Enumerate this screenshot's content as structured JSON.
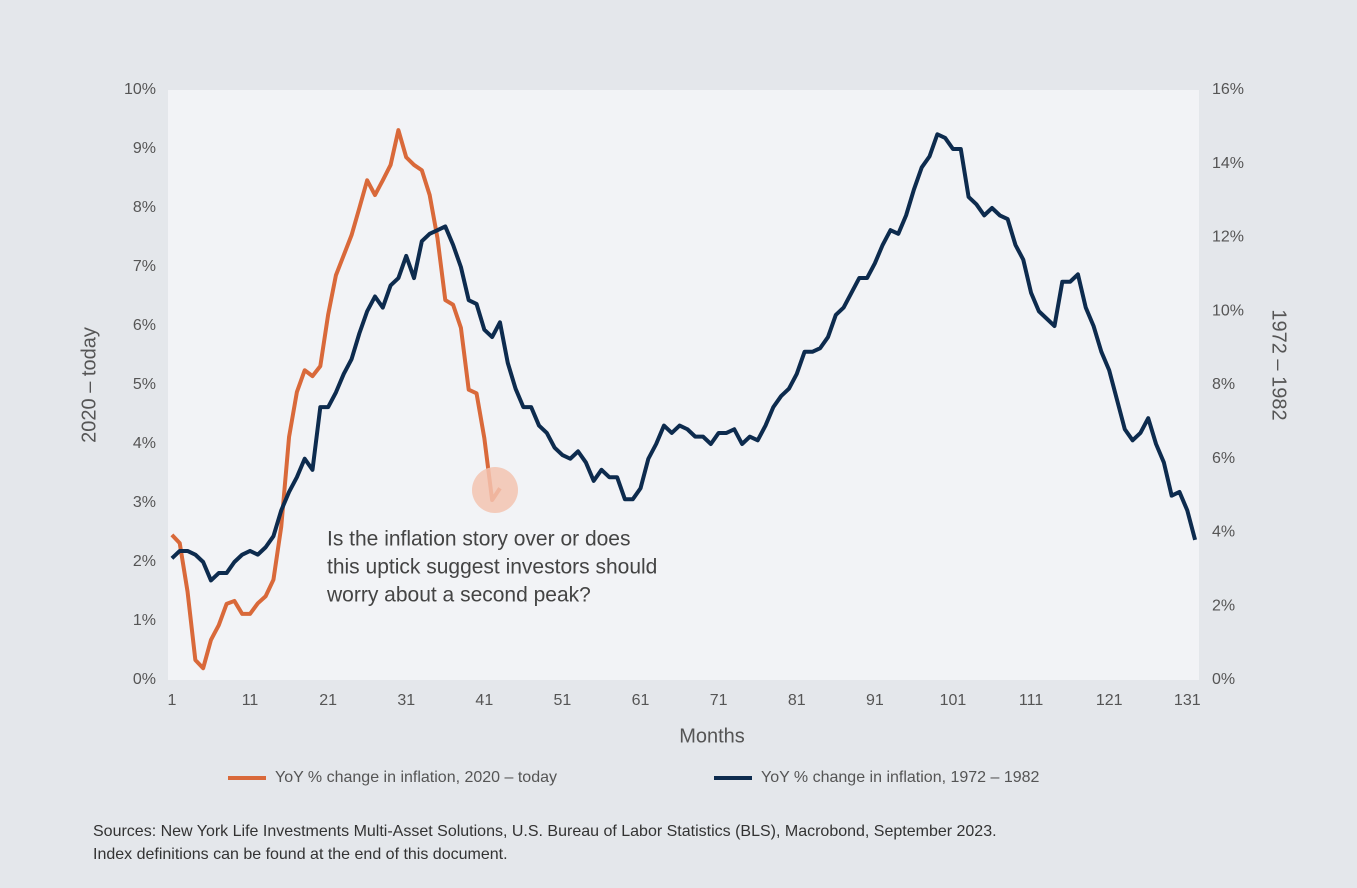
{
  "chart_data": {
    "type": "line",
    "x_label": "Months",
    "y_label": "2020 – today",
    "y2_label": "1972 – 1982",
    "annotation_lines": [
      "Is the inflation story over or does",
      "this uptick suggest investors should",
      "worry about a second peak?"
    ],
    "source_lines": [
      "Sources: New York Life Investments Multi-Asset Solutions, U.S. Bureau of Labor Statistics (BLS), Macrobond, September 2023.",
      "Index definitions can be found at the end of this document."
    ],
    "grid": false,
    "xlim": [
      0.5,
      132.5
    ],
    "xticks": [
      1,
      11,
      21,
      31,
      41,
      51,
      61,
      71,
      81,
      91,
      101,
      111,
      121,
      131
    ],
    "ylim": [
      0,
      10
    ],
    "yticks": [
      {
        "value": 0,
        "label": "0%"
      },
      {
        "value": 1,
        "label": "1%"
      },
      {
        "value": 2,
        "label": "2%"
      },
      {
        "value": 3,
        "label": "3%"
      },
      {
        "value": 4,
        "label": "4%"
      },
      {
        "value": 5,
        "label": "5%"
      },
      {
        "value": 6,
        "label": "6%"
      },
      {
        "value": 7,
        "label": "7%"
      },
      {
        "value": 8,
        "label": "8%"
      },
      {
        "value": 9,
        "label": "9%"
      },
      {
        "value": 10,
        "label": "10%"
      }
    ],
    "y2lim": [
      0,
      16
    ],
    "y2ticks": [
      {
        "value": 0,
        "label": "0%"
      },
      {
        "value": 2,
        "label": "2%"
      },
      {
        "value": 4,
        "label": "4%"
      },
      {
        "value": 6,
        "label": "6%"
      },
      {
        "value": 8,
        "label": "8%"
      },
      {
        "value": 10,
        "label": "10%"
      },
      {
        "value": 12,
        "label": "12%"
      },
      {
        "value": 14,
        "label": "14%"
      },
      {
        "value": 16,
        "label": "16%"
      }
    ],
    "x": [
      1,
      2,
      3,
      4,
      5,
      6,
      7,
      8,
      9,
      10,
      11,
      12,
      13,
      14,
      15,
      16,
      17,
      18,
      19,
      20,
      21,
      22,
      23,
      24,
      25,
      26,
      27,
      28,
      29,
      30,
      31,
      32,
      33,
      34,
      35,
      36,
      37,
      38,
      39,
      40,
      41,
      42,
      43,
      44,
      45,
      46,
      47,
      48,
      49,
      50,
      51,
      52,
      53,
      54,
      55,
      56,
      57,
      58,
      59,
      60,
      61,
      62,
      63,
      64,
      65,
      66,
      67,
      68,
      69,
      70,
      71,
      72,
      73,
      74,
      75,
      76,
      77,
      78,
      79,
      80,
      81,
      82,
      83,
      84,
      85,
      86,
      87,
      88,
      89,
      90,
      91,
      92,
      93,
      94,
      95,
      96,
      97,
      98,
      99,
      100,
      101,
      102,
      103,
      104,
      105,
      106,
      107,
      108,
      109,
      110,
      111,
      112,
      113,
      114,
      115,
      116,
      117,
      118,
      119,
      120,
      121,
      122,
      123,
      124,
      125,
      126,
      127,
      128,
      129,
      130,
      131,
      132
    ],
    "series": [
      {
        "name": "YoY % change in inflation, 2020 – today",
        "color": "#d9693a",
        "values": [
          2.46,
          2.32,
          1.5,
          0.34,
          0.2,
          0.68,
          0.93,
          1.29,
          1.34,
          1.12,
          1.12,
          1.3,
          1.42,
          1.7,
          2.6,
          4.12,
          4.88,
          5.25,
          5.15,
          5.32,
          6.19,
          6.86,
          7.2,
          7.54,
          8.0,
          8.47,
          8.22,
          8.47,
          8.73,
          9.32,
          8.86,
          8.73,
          8.64,
          8.22,
          7.49,
          6.44,
          6.36,
          5.97,
          4.92,
          4.86,
          4.1,
          3.05,
          3.25,
          null,
          null,
          null,
          null,
          null,
          null,
          null,
          null,
          null,
          null,
          null,
          null,
          null,
          null,
          null,
          null,
          null,
          null,
          null,
          null,
          null,
          null,
          null,
          null,
          null,
          null,
          null,
          null,
          null,
          null,
          null,
          null,
          null,
          null,
          null,
          null,
          null,
          null,
          null,
          null,
          null,
          null,
          null,
          null,
          null,
          null,
          null,
          null,
          null,
          null,
          null,
          null,
          null,
          null,
          null,
          null,
          null,
          null,
          null,
          null,
          null,
          null,
          null,
          null,
          null,
          null,
          null,
          null,
          null,
          null,
          null,
          null,
          null,
          null,
          null,
          null,
          null,
          null,
          null,
          null,
          null,
          null,
          null,
          null,
          null,
          null,
          null,
          null,
          null
        ]
      },
      {
        "name": "YoY % change in inflation, 1972 – 1982",
        "color": "#0d2b4e",
        "axis": "y2",
        "values": [
          3.3,
          3.5,
          3.5,
          3.4,
          3.2,
          2.7,
          2.9,
          2.9,
          3.2,
          3.4,
          3.5,
          3.4,
          3.6,
          3.9,
          4.6,
          5.1,
          5.5,
          6.0,
          5.7,
          7.4,
          7.4,
          7.8,
          8.3,
          8.7,
          9.4,
          10.0,
          10.4,
          10.1,
          10.7,
          10.9,
          11.5,
          10.9,
          11.9,
          12.1,
          12.2,
          12.3,
          11.8,
          11.2,
          10.3,
          10.2,
          9.5,
          9.3,
          9.7,
          8.6,
          7.9,
          7.4,
          7.4,
          6.9,
          6.7,
          6.3,
          6.1,
          6.0,
          6.2,
          5.9,
          5.4,
          5.7,
          5.5,
          5.5,
          4.9,
          4.9,
          5.2,
          6.0,
          6.4,
          6.9,
          6.7,
          6.9,
          6.8,
          6.6,
          6.6,
          6.4,
          6.7,
          6.7,
          6.8,
          6.4,
          6.6,
          6.5,
          6.9,
          7.4,
          7.7,
          7.9,
          8.3,
          8.9,
          8.9,
          9.0,
          9.3,
          9.9,
          10.1,
          10.5,
          10.9,
          10.9,
          11.3,
          11.8,
          12.2,
          12.1,
          12.6,
          13.3,
          13.9,
          14.2,
          14.8,
          14.7,
          14.4,
          14.4,
          13.1,
          12.9,
          12.6,
          12.8,
          12.6,
          12.5,
          11.8,
          11.4,
          10.5,
          10.0,
          9.8,
          9.6,
          10.8,
          10.8,
          11.0,
          10.1,
          9.6,
          8.9,
          8.4,
          7.6,
          6.8,
          6.5,
          6.7,
          7.1,
          6.4,
          5.9,
          5.0,
          5.1,
          4.6,
          3.8
        ]
      }
    ]
  }
}
